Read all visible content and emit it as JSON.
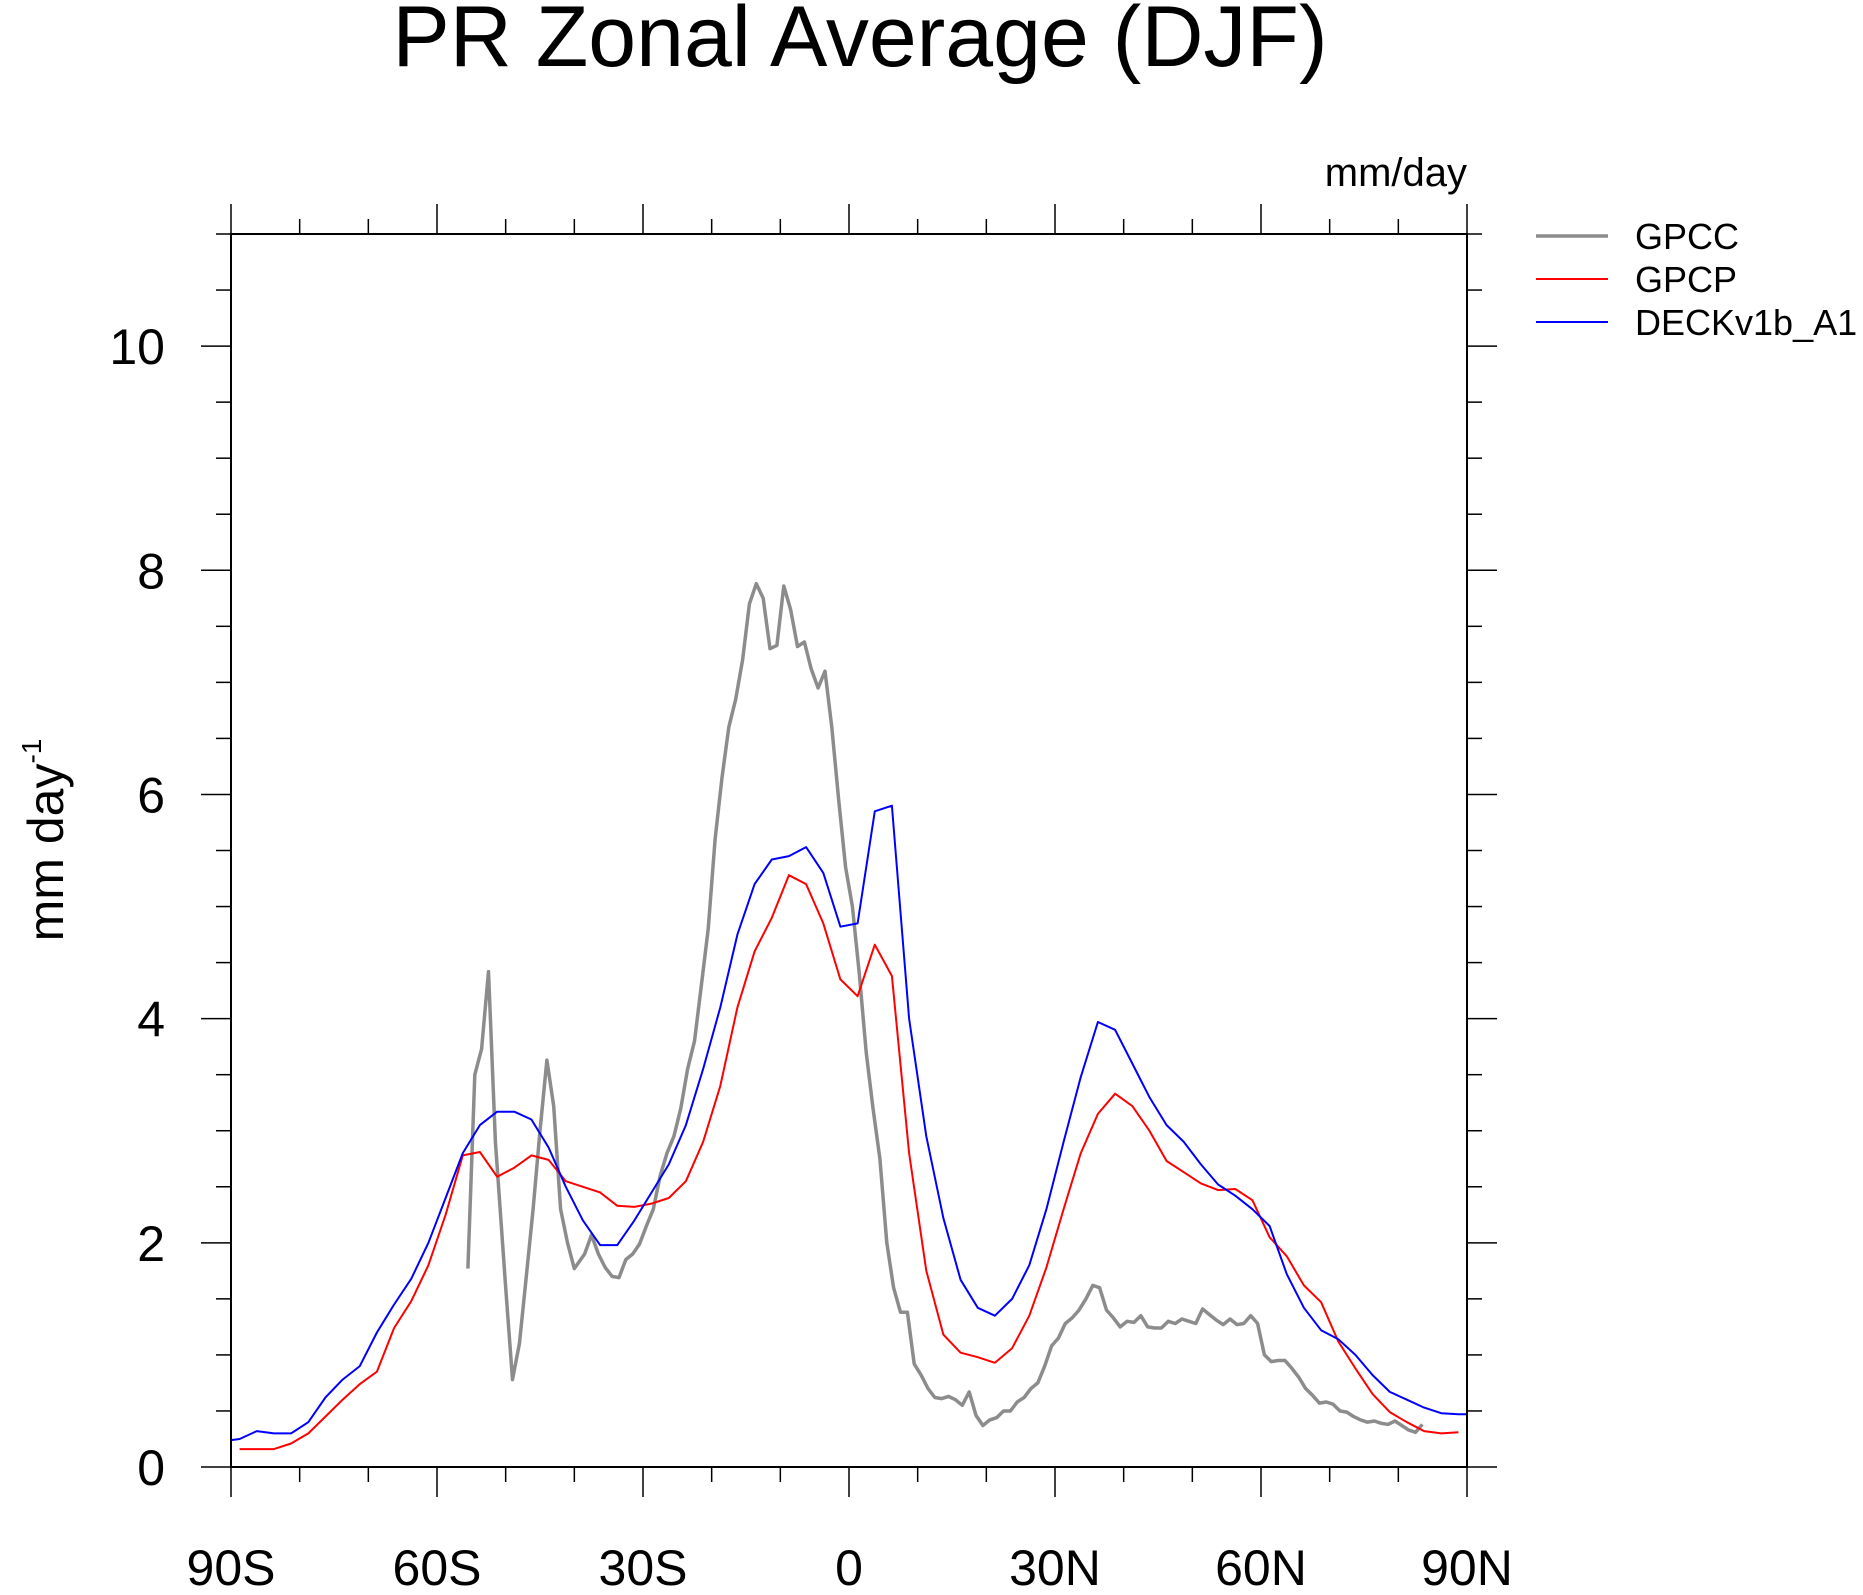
{
  "chart_data": {
    "type": "line",
    "title": "PR Zonal Average (DJF)",
    "units_label": "mm/day",
    "ylabel": "mm day",
    "ylabel_superscript": "-1",
    "xlabel": "",
    "xlim": [
      -90,
      90
    ],
    "ylim": [
      0,
      11
    ],
    "xticks": [
      {
        "value": -90,
        "label": "90S"
      },
      {
        "value": -60,
        "label": "60S"
      },
      {
        "value": -30,
        "label": "30S"
      },
      {
        "value": 0,
        "label": "0"
      },
      {
        "value": 30,
        "label": "30N"
      },
      {
        "value": 60,
        "label": "60N"
      },
      {
        "value": 90,
        "label": "90N"
      }
    ],
    "yticks": [
      {
        "value": 0,
        "label": "0"
      },
      {
        "value": 2,
        "label": "2"
      },
      {
        "value": 4,
        "label": "4"
      },
      {
        "value": 6,
        "label": "6"
      },
      {
        "value": 8,
        "label": "8"
      },
      {
        "value": 10,
        "label": "10"
      }
    ],
    "grid": false,
    "legend_position": "outside-top-right",
    "series": [
      {
        "name": "GPCC",
        "color": "#8c8c8c",
        "points": [
          [
            -55.5,
            1.77
          ],
          [
            -54.5,
            3.5
          ],
          [
            -53.5,
            3.73
          ],
          [
            -52.5,
            4.42
          ],
          [
            -51.5,
            2.9
          ],
          [
            -50,
            1.6
          ],
          [
            -49,
            0.78
          ],
          [
            -48,
            1.1
          ],
          [
            -47,
            1.7
          ],
          [
            -46,
            2.3
          ],
          [
            -45,
            3.0
          ],
          [
            -44,
            3.63
          ],
          [
            -43,
            3.22
          ],
          [
            -42,
            2.3
          ],
          [
            -41,
            2.0
          ],
          [
            -40,
            1.77
          ],
          [
            -38.5,
            1.9
          ],
          [
            -37.5,
            2.07
          ],
          [
            -36.5,
            1.9
          ],
          [
            -35.5,
            1.78
          ],
          [
            -34.5,
            1.7
          ],
          [
            -33.5,
            1.69
          ],
          [
            -32.5,
            1.85
          ],
          [
            -31.5,
            1.9
          ],
          [
            -30.5,
            1.99
          ],
          [
            -29.5,
            2.15
          ],
          [
            -28.5,
            2.3
          ],
          [
            -27.5,
            2.6
          ],
          [
            -26.5,
            2.8
          ],
          [
            -25.5,
            2.95
          ],
          [
            -24.5,
            3.2
          ],
          [
            -23.5,
            3.55
          ],
          [
            -22.5,
            3.8
          ],
          [
            -21.5,
            4.3
          ],
          [
            -20.5,
            4.8
          ],
          [
            -19.5,
            5.6
          ],
          [
            -18.5,
            6.15
          ],
          [
            -17.5,
            6.6
          ],
          [
            -16.5,
            6.85
          ],
          [
            -15.5,
            7.2
          ],
          [
            -14.5,
            7.7
          ],
          [
            -13.5,
            7.88
          ],
          [
            -12.5,
            7.75
          ],
          [
            -11.5,
            7.3
          ],
          [
            -10.5,
            7.33
          ],
          [
            -9.5,
            7.86
          ],
          [
            -8.5,
            7.65
          ],
          [
            -7.5,
            7.32
          ],
          [
            -6.5,
            7.36
          ],
          [
            -5.5,
            7.12
          ],
          [
            -4.5,
            6.95
          ],
          [
            -3.5,
            7.1
          ],
          [
            -2.5,
            6.6
          ],
          [
            -1.5,
            5.95
          ],
          [
            -0.5,
            5.35
          ],
          [
            0.5,
            5.0
          ],
          [
            1.5,
            4.4
          ],
          [
            2.5,
            3.7
          ],
          [
            3.5,
            3.2
          ],
          [
            4.5,
            2.75
          ],
          [
            5.5,
            2.0
          ],
          [
            6.5,
            1.6
          ],
          [
            7.5,
            1.38
          ],
          [
            8.5,
            1.38
          ],
          [
            9.5,
            0.92
          ],
          [
            10.5,
            0.82
          ],
          [
            11.5,
            0.7
          ],
          [
            12.5,
            0.62
          ],
          [
            13.5,
            0.61
          ],
          [
            14.5,
            0.63
          ],
          [
            15.5,
            0.6
          ],
          [
            16.5,
            0.55
          ],
          [
            17.5,
            0.67
          ],
          [
            18.5,
            0.46
          ],
          [
            19.5,
            0.37
          ],
          [
            20.5,
            0.42
          ],
          [
            21.5,
            0.44
          ],
          [
            22.5,
            0.5
          ],
          [
            23.5,
            0.5
          ],
          [
            24.5,
            0.58
          ],
          [
            25.5,
            0.62
          ],
          [
            26.5,
            0.7
          ],
          [
            27.5,
            0.75
          ],
          [
            28.5,
            0.9
          ],
          [
            29.5,
            1.08
          ],
          [
            30.5,
            1.15
          ],
          [
            31.5,
            1.28
          ],
          [
            32.5,
            1.33
          ],
          [
            33.5,
            1.4
          ],
          [
            34.5,
            1.5
          ],
          [
            35.5,
            1.62
          ],
          [
            36.5,
            1.6
          ],
          [
            37.5,
            1.4
          ],
          [
            38.5,
            1.33
          ],
          [
            39.5,
            1.25
          ],
          [
            40.5,
            1.3
          ],
          [
            41.5,
            1.29
          ],
          [
            42.5,
            1.35
          ],
          [
            43.5,
            1.25
          ],
          [
            44.5,
            1.24
          ],
          [
            45.5,
            1.24
          ],
          [
            46.5,
            1.3
          ],
          [
            47.5,
            1.28
          ],
          [
            48.5,
            1.32
          ],
          [
            49.5,
            1.3
          ],
          [
            50.5,
            1.28
          ],
          [
            51.5,
            1.41
          ],
          [
            52.5,
            1.36
          ],
          [
            53.5,
            1.31
          ],
          [
            54.5,
            1.27
          ],
          [
            55.5,
            1.32
          ],
          [
            56.5,
            1.27
          ],
          [
            57.5,
            1.28
          ],
          [
            58.5,
            1.35
          ],
          [
            59.5,
            1.28
          ],
          [
            60.5,
            1.0
          ],
          [
            61.5,
            0.94
          ],
          [
            62.5,
            0.95
          ],
          [
            63.5,
            0.95
          ],
          [
            64.5,
            0.88
          ],
          [
            65.5,
            0.8
          ],
          [
            66.5,
            0.7
          ],
          [
            67.5,
            0.64
          ],
          [
            68.5,
            0.57
          ],
          [
            69.5,
            0.58
          ],
          [
            70.5,
            0.56
          ],
          [
            71.5,
            0.5
          ],
          [
            72.5,
            0.49
          ],
          [
            73.5,
            0.45
          ],
          [
            74.5,
            0.42
          ],
          [
            75.5,
            0.4
          ],
          [
            76.5,
            0.41
          ],
          [
            77.5,
            0.39
          ],
          [
            78.5,
            0.38
          ],
          [
            79.5,
            0.41
          ],
          [
            80.5,
            0.37
          ],
          [
            81.5,
            0.33
          ],
          [
            82.5,
            0.31
          ],
          [
            83.5,
            0.38
          ]
        ]
      },
      {
        "name": "GPCP",
        "color": "#ff0000",
        "points": [
          [
            -88.75,
            0.16
          ],
          [
            -86.25,
            0.16
          ],
          [
            -83.75,
            0.16
          ],
          [
            -81.25,
            0.21
          ],
          [
            -78.75,
            0.3
          ],
          [
            -76.25,
            0.45
          ],
          [
            -73.75,
            0.6
          ],
          [
            -71.25,
            0.74
          ],
          [
            -68.75,
            0.85
          ],
          [
            -66.25,
            1.24
          ],
          [
            -63.75,
            1.48
          ],
          [
            -61.25,
            1.8
          ],
          [
            -58.75,
            2.25
          ],
          [
            -56.25,
            2.78
          ],
          [
            -53.75,
            2.81
          ],
          [
            -51.25,
            2.59
          ],
          [
            -48.75,
            2.67
          ],
          [
            -46.25,
            2.78
          ],
          [
            -43.75,
            2.74
          ],
          [
            -41.25,
            2.55
          ],
          [
            -38.75,
            2.5
          ],
          [
            -36.25,
            2.45
          ],
          [
            -33.75,
            2.33
          ],
          [
            -31.25,
            2.32
          ],
          [
            -28.75,
            2.35
          ],
          [
            -26.25,
            2.4
          ],
          [
            -23.75,
            2.55
          ],
          [
            -21.25,
            2.9
          ],
          [
            -18.75,
            3.4
          ],
          [
            -16.25,
            4.1
          ],
          [
            -13.75,
            4.6
          ],
          [
            -11.25,
            4.9
          ],
          [
            -8.75,
            5.28
          ],
          [
            -6.25,
            5.2
          ],
          [
            -3.75,
            4.85
          ],
          [
            -1.25,
            4.35
          ],
          [
            1.25,
            4.2
          ],
          [
            3.75,
            4.66
          ],
          [
            6.25,
            4.38
          ],
          [
            8.75,
            2.8
          ],
          [
            11.25,
            1.75
          ],
          [
            13.75,
            1.18
          ],
          [
            16.25,
            1.02
          ],
          [
            18.75,
            0.98
          ],
          [
            21.25,
            0.93
          ],
          [
            23.75,
            1.06
          ],
          [
            26.25,
            1.35
          ],
          [
            28.75,
            1.78
          ],
          [
            31.25,
            2.3
          ],
          [
            33.75,
            2.8
          ],
          [
            36.25,
            3.15
          ],
          [
            38.75,
            3.33
          ],
          [
            41.25,
            3.22
          ],
          [
            43.75,
            3.0
          ],
          [
            46.25,
            2.73
          ],
          [
            48.75,
            2.63
          ],
          [
            51.25,
            2.53
          ],
          [
            53.75,
            2.47
          ],
          [
            56.25,
            2.48
          ],
          [
            58.75,
            2.38
          ],
          [
            61.25,
            2.05
          ],
          [
            63.75,
            1.88
          ],
          [
            66.25,
            1.62
          ],
          [
            68.75,
            1.47
          ],
          [
            71.25,
            1.12
          ],
          [
            73.75,
            0.88
          ],
          [
            76.25,
            0.65
          ],
          [
            78.75,
            0.49
          ],
          [
            81.25,
            0.4
          ],
          [
            83.75,
            0.32
          ],
          [
            86.25,
            0.3
          ],
          [
            88.75,
            0.31
          ]
        ]
      },
      {
        "name": "DECKv1b_A1",
        "color": "#0000ff",
        "points": [
          [
            -90,
            0.24
          ],
          [
            -88.75,
            0.25
          ],
          [
            -86.25,
            0.32
          ],
          [
            -83.75,
            0.3
          ],
          [
            -81.25,
            0.3
          ],
          [
            -78.75,
            0.4
          ],
          [
            -76.25,
            0.62
          ],
          [
            -73.75,
            0.78
          ],
          [
            -71.25,
            0.9
          ],
          [
            -68.75,
            1.2
          ],
          [
            -66.25,
            1.45
          ],
          [
            -63.75,
            1.68
          ],
          [
            -61.25,
            2.0
          ],
          [
            -58.75,
            2.4
          ],
          [
            -56.25,
            2.8
          ],
          [
            -53.75,
            3.05
          ],
          [
            -51.25,
            3.17
          ],
          [
            -48.75,
            3.17
          ],
          [
            -46.25,
            3.1
          ],
          [
            -43.75,
            2.85
          ],
          [
            -41.25,
            2.5
          ],
          [
            -38.75,
            2.2
          ],
          [
            -36.25,
            1.98
          ],
          [
            -33.75,
            1.98
          ],
          [
            -31.25,
            2.2
          ],
          [
            -28.75,
            2.45
          ],
          [
            -26.25,
            2.7
          ],
          [
            -23.75,
            3.05
          ],
          [
            -21.25,
            3.55
          ],
          [
            -18.75,
            4.1
          ],
          [
            -16.25,
            4.75
          ],
          [
            -13.75,
            5.2
          ],
          [
            -11.25,
            5.42
          ],
          [
            -8.75,
            5.45
          ],
          [
            -6.25,
            5.53
          ],
          [
            -3.75,
            5.3
          ],
          [
            -1.25,
            4.82
          ],
          [
            1.25,
            4.85
          ],
          [
            3.75,
            5.85
          ],
          [
            6.25,
            5.9
          ],
          [
            8.75,
            4.0
          ],
          [
            11.25,
            2.95
          ],
          [
            13.75,
            2.22
          ],
          [
            16.25,
            1.67
          ],
          [
            18.75,
            1.42
          ],
          [
            21.25,
            1.35
          ],
          [
            23.75,
            1.5
          ],
          [
            26.25,
            1.8
          ],
          [
            28.75,
            2.3
          ],
          [
            31.25,
            2.9
          ],
          [
            33.75,
            3.48
          ],
          [
            36.25,
            3.97
          ],
          [
            38.75,
            3.9
          ],
          [
            41.25,
            3.6
          ],
          [
            43.75,
            3.3
          ],
          [
            46.25,
            3.05
          ],
          [
            48.75,
            2.9
          ],
          [
            51.25,
            2.7
          ],
          [
            53.75,
            2.52
          ],
          [
            56.25,
            2.42
          ],
          [
            58.75,
            2.3
          ],
          [
            61.25,
            2.15
          ],
          [
            63.75,
            1.72
          ],
          [
            66.25,
            1.42
          ],
          [
            68.75,
            1.22
          ],
          [
            71.25,
            1.14
          ],
          [
            73.75,
            1.0
          ],
          [
            76.25,
            0.82
          ],
          [
            78.75,
            0.67
          ],
          [
            81.25,
            0.6
          ],
          [
            83.75,
            0.53
          ],
          [
            86.25,
            0.48
          ],
          [
            88.75,
            0.47
          ],
          [
            90,
            0.47
          ]
        ]
      }
    ]
  }
}
